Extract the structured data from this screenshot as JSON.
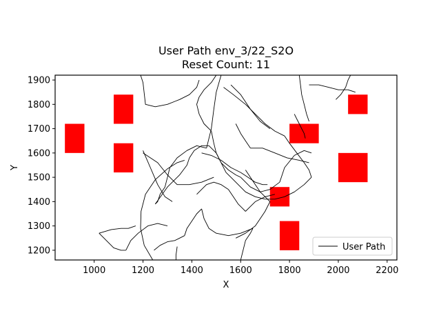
{
  "chart_data": {
    "type": "line",
    "title": "User Path env_3/22_S2O",
    "subtitle": "Reset Count: 11",
    "xlabel": "X",
    "ylabel": "Y",
    "xlim": [
      840,
      2240
    ],
    "ylim": [
      1160,
      1920
    ],
    "xticks": [
      1000,
      1200,
      1400,
      1600,
      1800,
      2000,
      2200
    ],
    "yticks": [
      1200,
      1300,
      1400,
      1500,
      1600,
      1700,
      1800,
      1900
    ],
    "grid": false,
    "legend": {
      "placement": "bottom-right",
      "entries": [
        "User Path"
      ]
    },
    "colors": {
      "path": "#000000",
      "obstacle": "#ff0000"
    },
    "obstacles": [
      {
        "x": [
          880,
          960
        ],
        "y": [
          1600,
          1720
        ]
      },
      {
        "x": [
          1080,
          1160
        ],
        "y": [
          1720,
          1840
        ]
      },
      {
        "x": [
          1080,
          1160
        ],
        "y": [
          1520,
          1640
        ]
      },
      {
        "x": [
          1800,
          1920
        ],
        "y": [
          1640,
          1720
        ]
      },
      {
        "x": [
          2040,
          2120
        ],
        "y": [
          1760,
          1840
        ]
      },
      {
        "x": [
          2000,
          2120
        ],
        "y": [
          1480,
          1600
        ]
      },
      {
        "x": [
          1720,
          1800
        ],
        "y": [
          1380,
          1460
        ]
      },
      {
        "x": [
          1760,
          1840
        ],
        "y": [
          1200,
          1320
        ]
      }
    ],
    "series": [
      {
        "name": "User Path",
        "segments": [
          {
            "x": [
              1240,
              1205,
              1190,
              1192,
              1210,
              1250,
              1300,
              1340,
              1370
            ],
            "y": [
              1160,
              1220,
              1290,
              1360,
              1430,
              1490,
              1535,
              1560,
              1570
            ]
          },
          {
            "x": [
              1335,
              1335,
              1338,
              1340
            ],
            "y": [
              1160,
              1180,
              1200,
              1215
            ]
          },
          {
            "x": [
              1200,
              1260,
              1300,
              1340,
              1390,
              1440,
              1490
            ],
            "y": [
              1600,
              1560,
              1510,
              1470,
              1470,
              1480,
              1500
            ]
          },
          {
            "x": [
              1200,
              1230,
              1260,
              1290,
              1320
            ],
            "y": [
              1610,
              1540,
              1470,
              1420,
              1400
            ]
          },
          {
            "x": [
              1190,
              1200,
              1210,
              1250,
              1300
            ],
            "y": [
              1920,
              1890,
              1800,
              1790,
              1800
            ]
          },
          {
            "x": [
              1300,
              1350,
              1390,
              1420,
              1430
            ],
            "y": [
              1800,
              1820,
              1840,
              1870,
              1900
            ]
          },
          {
            "x": [
              1520,
              1500,
              1490,
              1480,
              1460
            ],
            "y": [
              1920,
              1850,
              1780,
              1700,
              1620
            ]
          },
          {
            "x": [
              1460,
              1420,
              1380,
              1340,
              1310,
              1300
            ],
            "y": [
              1620,
              1630,
              1610,
              1580,
              1540,
              1500
            ]
          },
          {
            "x": [
              1300,
              1290,
              1270,
              1260,
              1250
            ],
            "y": [
              1500,
              1460,
              1430,
              1400,
              1390
            ]
          },
          {
            "x": [
              1250,
              1300,
              1350,
              1380,
              1390
            ],
            "y": [
              1390,
              1460,
              1510,
              1550,
              1580
            ]
          },
          {
            "x": [
              1390,
              1410,
              1440,
              1470,
              1500
            ],
            "y": [
              1580,
              1610,
              1630,
              1630,
              1600
            ]
          },
          {
            "x": [
              1500,
              1520,
              1550,
              1580,
              1600
            ],
            "y": [
              1600,
              1560,
              1530,
              1510,
              1500
            ]
          },
          {
            "x": [
              1600,
              1640,
              1680,
              1720,
              1760
            ],
            "y": [
              1500,
              1460,
              1440,
              1450,
              1480
            ]
          },
          {
            "x": [
              1760,
              1780,
              1820,
              1860,
              1890
            ],
            "y": [
              1480,
              1540,
              1590,
              1610,
              1600
            ]
          },
          {
            "x": [
              1530,
              1570,
              1620,
              1660,
              1700,
              1740,
              1780
            ],
            "y": [
              1870,
              1840,
              1800,
              1760,
              1720,
              1690,
              1670
            ]
          },
          {
            "x": [
              1780,
              1800,
              1830,
              1860,
              1880,
              1890
            ],
            "y": [
              1670,
              1640,
              1600,
              1560,
              1530,
              1500
            ]
          },
          {
            "x": [
              1890,
              1860,
              1820,
              1780,
              1740,
              1700
            ],
            "y": [
              1500,
              1470,
              1440,
              1420,
              1410,
              1410
            ]
          },
          {
            "x": [
              1700,
              1660,
              1620,
              1590,
              1560,
              1540
            ],
            "y": [
              1410,
              1420,
              1440,
              1470,
              1500,
              1520
            ]
          },
          {
            "x": [
              1540,
              1520,
              1500,
              1490,
              1480
            ],
            "y": [
              1520,
              1560,
              1600,
              1640,
              1690
            ]
          },
          {
            "x": [
              1480,
              1450,
              1430,
              1420,
              1430
            ],
            "y": [
              1690,
              1720,
              1760,
              1800,
              1830
            ]
          },
          {
            "x": [
              1430,
              1450,
              1480,
              1500
            ],
            "y": [
              1830,
              1860,
              1890,
              1920
            ]
          },
          {
            "x": [
              1560,
              1600,
              1640,
              1680,
              1720
            ],
            "y": [
              1880,
              1840,
              1780,
              1730,
              1700
            ]
          },
          {
            "x": [
              1620,
              1640,
              1660,
              1680,
              1700,
              1720
            ],
            "y": [
              1530,
              1500,
              1470,
              1440,
              1420,
              1400
            ]
          },
          {
            "x": [
              1720,
              1700,
              1680,
              1660,
              1620,
              1580
            ],
            "y": [
              1400,
              1360,
              1330,
              1300,
              1270,
              1250
            ]
          },
          {
            "x": [
              1600,
              1610,
              1620,
              1640,
              1650
            ],
            "y": [
              1160,
              1200,
              1240,
              1270,
              1290
            ]
          },
          {
            "x": [
              1650,
              1600,
              1550,
              1500,
              1470,
              1450,
              1440
            ],
            "y": [
              1290,
              1270,
              1260,
              1270,
              1290,
              1330,
              1370
            ]
          },
          {
            "x": [
              1440,
              1420,
              1400,
              1380,
              1370
            ],
            "y": [
              1370,
              1350,
              1320,
              1290,
              1260
            ]
          },
          {
            "x": [
              1370,
              1350,
              1330,
              1300,
              1270,
              1245
            ],
            "y": [
              1260,
              1250,
              1240,
              1235,
              1220,
              1200
            ]
          },
          {
            "x": [
              1020,
              1070,
              1110,
              1140,
              1170
            ],
            "y": [
              1270,
              1285,
              1290,
              1290,
              1300
            ]
          },
          {
            "x": [
              1020,
              1050,
              1080,
              1110,
              1130
            ],
            "y": [
              1270,
              1240,
              1210,
              1200,
              1200
            ]
          },
          {
            "x": [
              1130,
              1150,
              1180,
              1220,
              1260,
              1300
            ],
            "y": [
              1200,
              1240,
              1270,
              1300,
              1310,
              1300
            ]
          },
          {
            "x": [
              1580,
              1600,
              1620,
              1640
            ],
            "y": [
              1720,
              1680,
              1650,
              1620
            ]
          },
          {
            "x": [
              1640,
              1690,
              1740,
              1790,
              1840,
              1880
            ],
            "y": [
              1620,
              1620,
              1600,
              1580,
              1570,
              1560
            ]
          },
          {
            "x": [
              1840,
              1845,
              1850,
              1860,
              1870,
              1880
            ],
            "y": [
              1920,
              1880,
              1840,
              1800,
              1760,
              1730
            ]
          },
          {
            "x": [
              1880,
              1920,
              1960,
              2000,
              2040,
              2070
            ],
            "y": [
              1880,
              1880,
              1870,
              1860,
              1860,
              1850
            ]
          },
          {
            "x": [
              1990,
              2010,
              2030,
              2040,
              2050
            ],
            "y": [
              1820,
              1840,
              1870,
              1900,
              1920
            ]
          },
          {
            "x": [
              1820,
              1830,
              1840,
              1850,
              1860,
              1865
            ],
            "y": [
              1760,
              1740,
              1720,
              1700,
              1680,
              1660
            ]
          },
          {
            "x": [
              1420,
              1440,
              1460,
              1490,
              1520,
              1550
            ],
            "y": [
              1430,
              1450,
              1470,
              1480,
              1470,
              1450
            ]
          },
          {
            "x": [
              1550,
              1570,
              1590,
              1610,
              1620
            ],
            "y": [
              1450,
              1420,
              1390,
              1370,
              1360
            ]
          },
          {
            "x": [
              1620,
              1640,
              1660,
              1700,
              1740
            ],
            "y": [
              1360,
              1380,
              1400,
              1420,
              1430
            ]
          },
          {
            "x": [
              1440,
              1480,
              1520,
              1560,
              1600
            ],
            "y": [
              1600,
              1590,
              1570,
              1540,
              1520
            ]
          },
          {
            "x": [
              1600,
              1630,
              1660,
              1690,
              1710
            ],
            "y": [
              1520,
              1500,
              1480,
              1470,
              1470
            ]
          }
        ]
      }
    ]
  }
}
